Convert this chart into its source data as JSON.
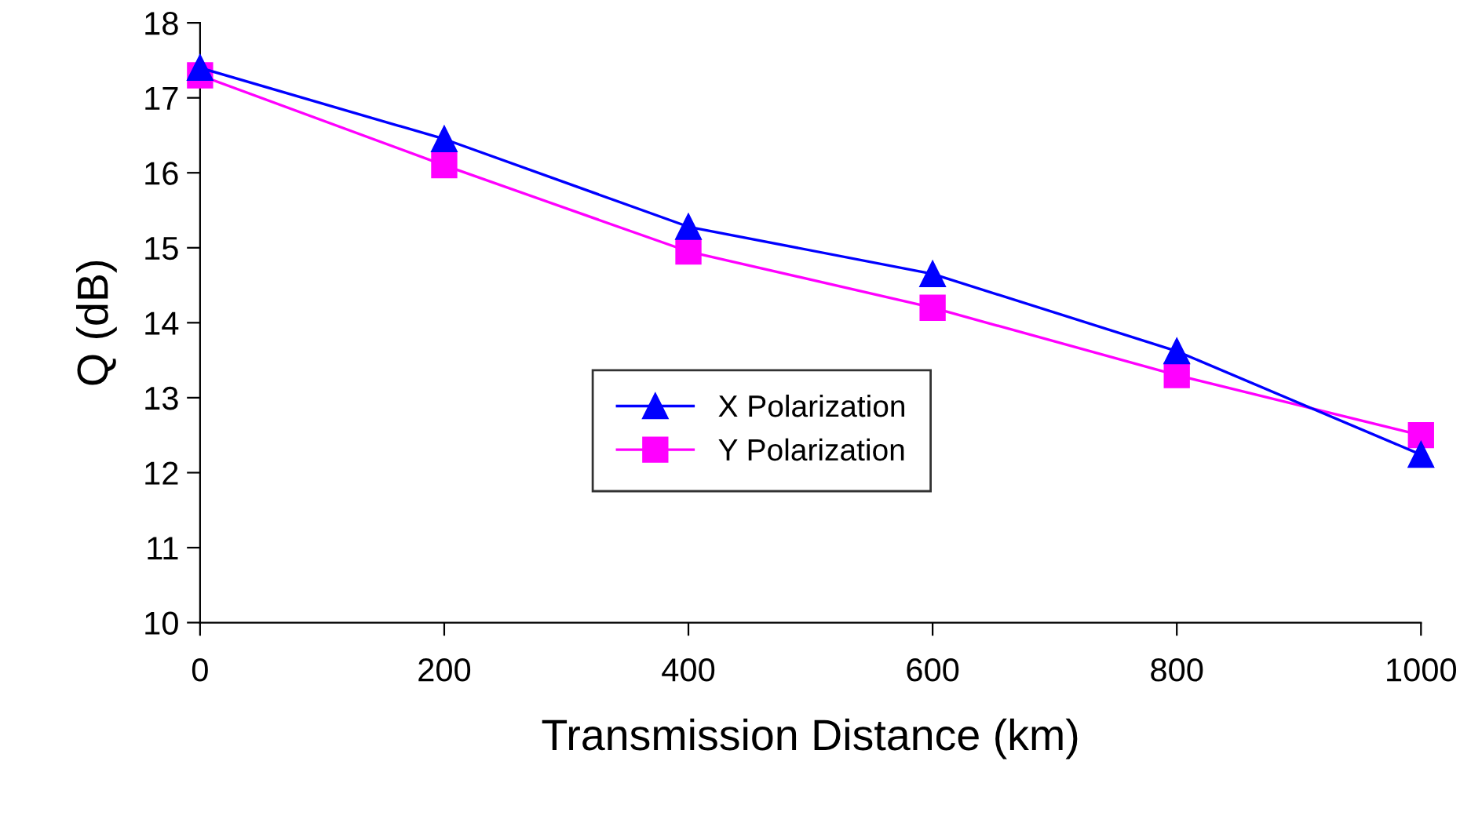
{
  "chart_data": {
    "type": "line",
    "xlabel": "Transmission Distance (km)",
    "ylabel": "Q (dB)",
    "x": [
      0,
      200,
      400,
      600,
      800,
      1000
    ],
    "series": [
      {
        "name": "X Polarization",
        "color": "#0000ff",
        "marker": "triangle",
        "values": [
          17.4,
          16.45,
          15.28,
          14.65,
          13.62,
          12.24
        ]
      },
      {
        "name": "Y Polarization",
        "color": "#ff00ff",
        "marker": "square",
        "values": [
          17.3,
          16.1,
          14.95,
          14.2,
          13.3,
          12.5
        ]
      }
    ],
    "xlim": [
      0,
      1000
    ],
    "xticks": [
      0,
      200,
      400,
      600,
      800,
      1000
    ],
    "ylim": [
      10,
      18
    ],
    "yticks": [
      10,
      11,
      12,
      13,
      14,
      15,
      16,
      17,
      18
    ],
    "grid": false,
    "legend": "center",
    "line_style": "solid"
  }
}
